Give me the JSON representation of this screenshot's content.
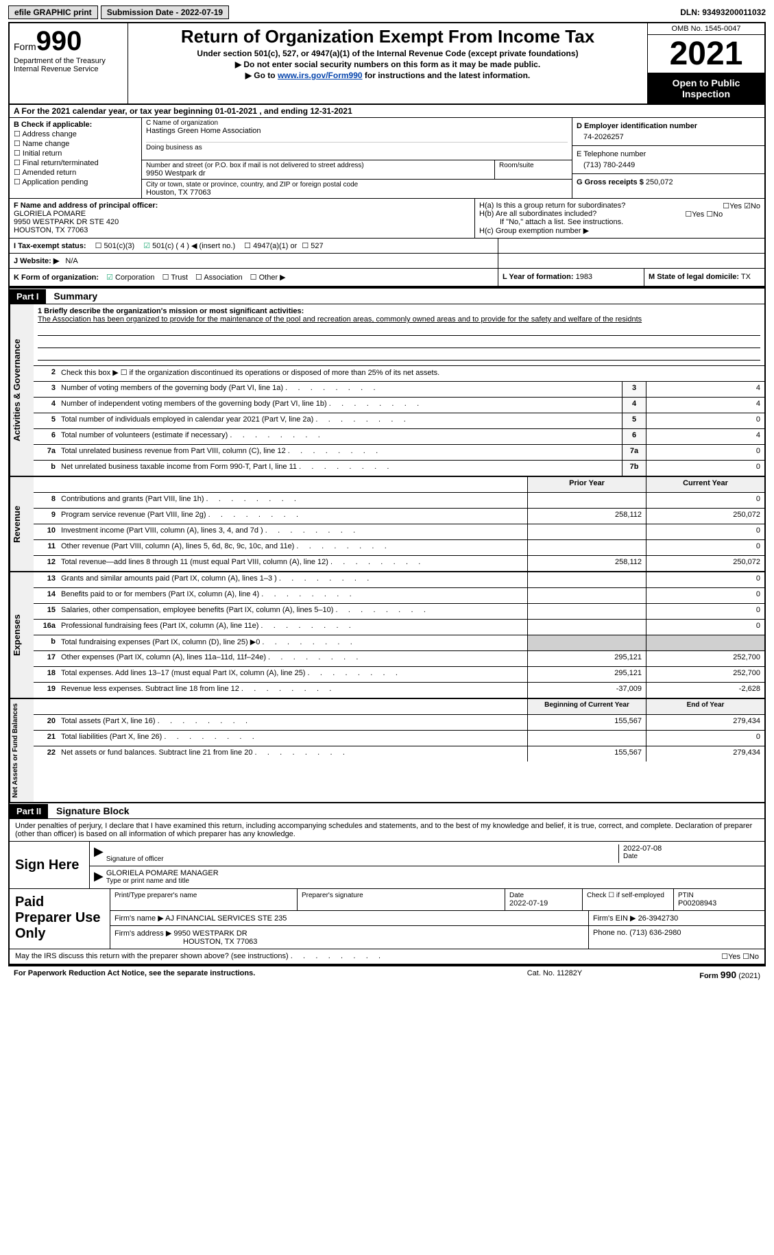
{
  "topbar": {
    "efile": "efile GRAPHIC print",
    "submission": "Submission Date - 2022-07-19",
    "dln": "DLN: 93493200011032"
  },
  "header": {
    "form_prefix": "Form",
    "form_number": "990",
    "dept": "Department of the Treasury",
    "irs": "Internal Revenue Service",
    "title": "Return of Organization Exempt From Income Tax",
    "subtitle1": "Under section 501(c), 527, or 4947(a)(1) of the Internal Revenue Code (except private foundations)",
    "subtitle2a": "▶ Do not enter social security numbers on this form as it may be made public.",
    "subtitle2b_prefix": "▶ Go to ",
    "subtitle2b_link": "www.irs.gov/Form990",
    "subtitle2b_suffix": " for instructions and the latest information.",
    "omb": "OMB No. 1545-0047",
    "year": "2021",
    "open": "Open to Public Inspection"
  },
  "period": "A For the 2021 calendar year, or tax year beginning 01-01-2021    , and ending 12-31-2021",
  "checkB": {
    "header": "B Check if applicable:",
    "items": [
      "Address change",
      "Name change",
      "Initial return",
      "Final return/terminated",
      "Amended return",
      "Application pending"
    ]
  },
  "org": {
    "c_label": "C Name of organization",
    "name": "Hastings Green Home Association",
    "dba_label": "Doing business as",
    "addr_label": "Number and street (or P.O. box if mail is not delivered to street address)",
    "room_label": "Room/suite",
    "addr": "9950 Westpark dr",
    "city_label": "City or town, state or province, country, and ZIP or foreign postal code",
    "city": "Houston, TX  77063"
  },
  "right": {
    "d_label": "D Employer identification number",
    "ein": "74-2026257",
    "e_label": "E Telephone number",
    "phone": "(713) 780-2449",
    "g_label": "G Gross receipts $",
    "gross": "250,072"
  },
  "fh": {
    "f_label": "F  Name and address of principal officer:",
    "officer_name": "GLORIELA POMARE",
    "officer_addr1": "9950 WESTPARK DR STE 420",
    "officer_addr2": "HOUSTON, TX  77063",
    "ha": "H(a)  Is this a group return for subordinates?",
    "hb": "H(b)  Are all subordinates included?",
    "hb_note": "If \"No,\" attach a list. See instructions.",
    "hc": "H(c)  Group exemption number ▶"
  },
  "i": {
    "label": "I  Tax-exempt status:",
    "opts": [
      "501(c)(3)",
      "501(c) ( 4 ) ◀ (insert no.)",
      "4947(a)(1) or",
      "527"
    ]
  },
  "j": {
    "label": "J  Website: ▶",
    "val": "N/A"
  },
  "k": {
    "label": "K Form of organization:",
    "opts": [
      "Corporation",
      "Trust",
      "Association",
      "Other ▶"
    ]
  },
  "l": {
    "label": "L Year of formation:",
    "val": "1983"
  },
  "m": {
    "label": "M State of legal domicile:",
    "val": "TX"
  },
  "part1": {
    "title": "Part I",
    "name": "Summary",
    "mission_label": "1  Briefly describe the organization's mission or most significant activities:",
    "mission": "The Association has been organized to provide for the maintenance of the pool and recreation areas, commonly owned areas and to provide for the safety and welfare of the residnts",
    "line2": "Check this box ▶ ☐ if the organization discontinued its operations or disposed of more than 25% of its net assets.",
    "lines": [
      {
        "n": "3",
        "t": "Number of voting members of the governing body (Part VI, line 1a)",
        "box": "3",
        "v": "4"
      },
      {
        "n": "4",
        "t": "Number of independent voting members of the governing body (Part VI, line 1b)",
        "box": "4",
        "v": "4"
      },
      {
        "n": "5",
        "t": "Total number of individuals employed in calendar year 2021 (Part V, line 2a)",
        "box": "5",
        "v": "0"
      },
      {
        "n": "6",
        "t": "Total number of volunteers (estimate if necessary)",
        "box": "6",
        "v": "4"
      },
      {
        "n": "7a",
        "t": "Total unrelated business revenue from Part VIII, column (C), line 12",
        "box": "7a",
        "v": "0"
      },
      {
        "n": "b",
        "t": "Net unrelated business taxable income from Form 990-T, Part I, line 11",
        "box": "7b",
        "v": "0"
      }
    ],
    "colhdr": {
      "prior": "Prior Year",
      "current": "Current Year"
    },
    "revenue": [
      {
        "n": "8",
        "t": "Contributions and grants (Part VIII, line 1h)",
        "p": "",
        "c": "0"
      },
      {
        "n": "9",
        "t": "Program service revenue (Part VIII, line 2g)",
        "p": "258,112",
        "c": "250,072"
      },
      {
        "n": "10",
        "t": "Investment income (Part VIII, column (A), lines 3, 4, and 7d )",
        "p": "",
        "c": "0"
      },
      {
        "n": "11",
        "t": "Other revenue (Part VIII, column (A), lines 5, 6d, 8c, 9c, 10c, and 11e)",
        "p": "",
        "c": "0"
      },
      {
        "n": "12",
        "t": "Total revenue—add lines 8 through 11 (must equal Part VIII, column (A), line 12)",
        "p": "258,112",
        "c": "250,072"
      }
    ],
    "expenses": [
      {
        "n": "13",
        "t": "Grants and similar amounts paid (Part IX, column (A), lines 1–3 )",
        "p": "",
        "c": "0"
      },
      {
        "n": "14",
        "t": "Benefits paid to or for members (Part IX, column (A), line 4)",
        "p": "",
        "c": "0"
      },
      {
        "n": "15",
        "t": "Salaries, other compensation, employee benefits (Part IX, column (A), lines 5–10)",
        "p": "",
        "c": "0"
      },
      {
        "n": "16a",
        "t": "Professional fundraising fees (Part IX, column (A), line 11e)",
        "p": "",
        "c": "0"
      },
      {
        "n": "b",
        "t": "Total fundraising expenses (Part IX, column (D), line 25) ▶0",
        "p": "GREY",
        "c": "GREY"
      },
      {
        "n": "17",
        "t": "Other expenses (Part IX, column (A), lines 11a–11d, 11f–24e)",
        "p": "295,121",
        "c": "252,700"
      },
      {
        "n": "18",
        "t": "Total expenses. Add lines 13–17 (must equal Part IX, column (A), line 25)",
        "p": "295,121",
        "c": "252,700"
      },
      {
        "n": "19",
        "t": "Revenue less expenses. Subtract line 18 from line 12",
        "p": "-37,009",
        "c": "-2,628"
      }
    ],
    "colhdr2": {
      "prior": "Beginning of Current Year",
      "current": "End of Year"
    },
    "netassets": [
      {
        "n": "20",
        "t": "Total assets (Part X, line 16)",
        "p": "155,567",
        "c": "279,434"
      },
      {
        "n": "21",
        "t": "Total liabilities (Part X, line 26)",
        "p": "",
        "c": "0"
      },
      {
        "n": "22",
        "t": "Net assets or fund balances. Subtract line 21 from line 20",
        "p": "155,567",
        "c": "279,434"
      }
    ],
    "tabs": {
      "ag": "Activities & Governance",
      "rev": "Revenue",
      "exp": "Expenses",
      "na": "Net Assets or Fund Balances"
    }
  },
  "part2": {
    "title": "Part II",
    "name": "Signature Block",
    "decl": "Under penalties of perjury, I declare that I have examined this return, including accompanying schedules and statements, and to the best of my knowledge and belief, it is true, correct, and complete. Declaration of preparer (other than officer) is based on all information of which preparer has any knowledge.",
    "sign_here": "Sign Here",
    "sig_officer": "Signature of officer",
    "sig_date": "2022-07-08",
    "date_label": "Date",
    "officer_name": "GLORIELA POMARE  MANAGER",
    "name_label": "Type or print name and title",
    "paid": "Paid Preparer Use Only",
    "prep_name_label": "Print/Type preparer's name",
    "prep_sig_label": "Preparer's signature",
    "prep_date_label": "Date",
    "prep_date": "2022-07-19",
    "check_self": "Check ☐ if self-employed",
    "ptin_label": "PTIN",
    "ptin": "P00208943",
    "firm_name_label": "Firm's name    ▶",
    "firm_name": "AJ FINANCIAL SERVICES STE 235",
    "firm_ein_label": "Firm's EIN ▶",
    "firm_ein": "26-3942730",
    "firm_addr_label": "Firm's address ▶",
    "firm_addr1": "9950 WESTPARK DR",
    "firm_addr2": "HOUSTON, TX  77063",
    "firm_phone_label": "Phone no.",
    "firm_phone": "(713) 636-2980",
    "discuss": "May the IRS discuss this return with the preparer shown above? (see instructions)"
  },
  "footer": {
    "l": "For Paperwork Reduction Act Notice, see the separate instructions.",
    "m": "Cat. No. 11282Y",
    "r": "Form 990 (2021)"
  }
}
